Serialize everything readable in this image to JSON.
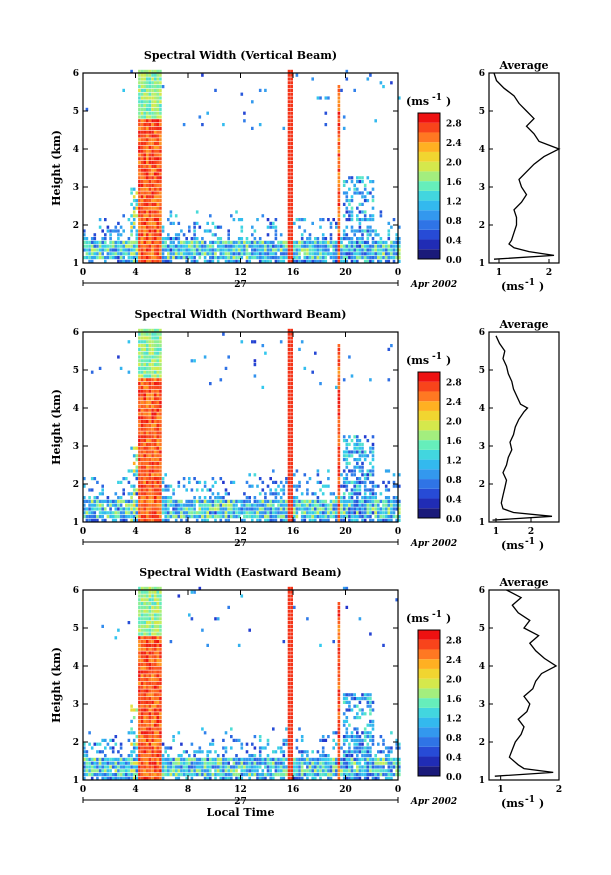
{
  "chart_data": [
    {
      "type": "heatmap",
      "title": "Spectral Width (Vertical Beam)",
      "ylabel": "Height (km)",
      "xlabel": "",
      "x_ticks": [
        "0",
        "4",
        "8",
        "12",
        "16",
        "20",
        "0"
      ],
      "y_ticks": [
        "1",
        "2",
        "3",
        "4",
        "5",
        "6"
      ],
      "xlim": [
        0,
        24
      ],
      "ylim": [
        1,
        6
      ],
      "date_day": "27",
      "date_month_year": "Apr 2002",
      "colorbar_unit": "(ms",
      "colorbar_exp": "-1",
      "colorbar_ticks": [
        "2.8",
        "2.4",
        "2.0",
        "1.6",
        "1.2",
        "0.8",
        "0.4",
        "0.0"
      ],
      "zlim": [
        0,
        3
      ],
      "grid": false,
      "average": {
        "title": "Average",
        "x_ticks": [
          "1",
          "2"
        ],
        "xlim": [
          0.8,
          2.2
        ],
        "unit": "(ms",
        "unit_exp": "-1",
        "heights": [
          1.1,
          1.2,
          1.3,
          1.4,
          1.5,
          1.6,
          1.8,
          2.0,
          2.2,
          2.4,
          2.6,
          2.8,
          3.0,
          3.2,
          3.4,
          3.6,
          3.8,
          4.0,
          4.2,
          4.4,
          4.6,
          4.8,
          5.0,
          5.2,
          5.4,
          5.6,
          5.8,
          6.0
        ],
        "values": [
          0.9,
          2.1,
          1.6,
          1.3,
          1.2,
          1.25,
          1.3,
          1.35,
          1.35,
          1.3,
          1.45,
          1.55,
          1.45,
          1.4,
          1.55,
          1.7,
          1.9,
          2.2,
          1.8,
          1.7,
          1.55,
          1.7,
          1.55,
          1.4,
          1.3,
          1.1,
          0.95,
          0.9
        ]
      }
    },
    {
      "type": "heatmap",
      "title": "Spectral Width (Northward Beam)",
      "ylabel": "Height (km)",
      "xlabel": "",
      "x_ticks": [
        "0",
        "4",
        "8",
        "12",
        "16",
        "20",
        "0"
      ],
      "y_ticks": [
        "1",
        "2",
        "3",
        "4",
        "5",
        "6"
      ],
      "xlim": [
        0,
        24
      ],
      "ylim": [
        1,
        6
      ],
      "date_day": "27",
      "date_month_year": "Apr 2002",
      "colorbar_unit": "(ms",
      "colorbar_exp": "-1",
      "colorbar_ticks": [
        "2.8",
        "2.4",
        "2.0",
        "1.6",
        "1.2",
        "0.8",
        "0.4",
        "0.0"
      ],
      "zlim": [
        0,
        3
      ],
      "grid": false,
      "average": {
        "title": "Average",
        "x_ticks": [
          "1",
          "2"
        ],
        "xlim": [
          0.8,
          2.8
        ],
        "unit": "(ms",
        "unit_exp": "-1",
        "heights": [
          1.05,
          1.15,
          1.25,
          1.35,
          1.5,
          1.7,
          1.9,
          2.1,
          2.3,
          2.5,
          2.7,
          2.9,
          3.1,
          3.3,
          3.5,
          3.7,
          3.9,
          4.0,
          4.1,
          4.3,
          4.5,
          4.7,
          4.9,
          5.1,
          5.3,
          5.5,
          5.7,
          5.9
        ],
        "values": [
          0.9,
          2.6,
          1.5,
          1.2,
          1.15,
          1.2,
          1.25,
          1.3,
          1.2,
          1.3,
          1.35,
          1.45,
          1.4,
          1.5,
          1.55,
          1.65,
          1.8,
          1.9,
          1.7,
          1.6,
          1.5,
          1.45,
          1.35,
          1.3,
          1.2,
          1.25,
          1.1,
          1.0
        ]
      }
    },
    {
      "type": "heatmap",
      "title": "Spectral Width (Eastward Beam)",
      "ylabel": "Height (km)",
      "xlabel": "Local Time",
      "x_ticks": [
        "0",
        "4",
        "8",
        "12",
        "16",
        "20",
        "0"
      ],
      "y_ticks": [
        "1",
        "2",
        "3",
        "4",
        "5",
        "6"
      ],
      "xlim": [
        0,
        24
      ],
      "ylim": [
        1,
        6
      ],
      "date_day": "27",
      "date_month_year": "Apr 2002",
      "colorbar_unit": "(ms",
      "colorbar_exp": "-1",
      "colorbar_ticks": [
        "2.8",
        "2.4",
        "2.0",
        "1.6",
        "1.2",
        "0.8",
        "0.4",
        "0.0"
      ],
      "zlim": [
        0,
        3
      ],
      "grid": false,
      "average": {
        "title": "Average",
        "x_ticks": [
          "1",
          "2"
        ],
        "xlim": [
          0.8,
          2.0
        ],
        "unit": "(ms",
        "unit_exp": "-1",
        "heights": [
          1.1,
          1.2,
          1.3,
          1.4,
          1.6,
          1.8,
          2.0,
          2.2,
          2.4,
          2.6,
          2.8,
          3.0,
          3.2,
          3.4,
          3.6,
          3.8,
          4.0,
          4.2,
          4.4,
          4.6,
          4.8,
          5.0,
          5.2,
          5.4,
          5.6,
          5.8,
          6.0
        ],
        "values": [
          0.9,
          1.9,
          1.4,
          1.3,
          1.15,
          1.2,
          1.25,
          1.35,
          1.4,
          1.3,
          1.45,
          1.5,
          1.4,
          1.55,
          1.6,
          1.7,
          1.95,
          1.75,
          1.6,
          1.5,
          1.65,
          1.4,
          1.5,
          1.3,
          1.2,
          1.35,
          1.1
        ]
      }
    }
  ]
}
